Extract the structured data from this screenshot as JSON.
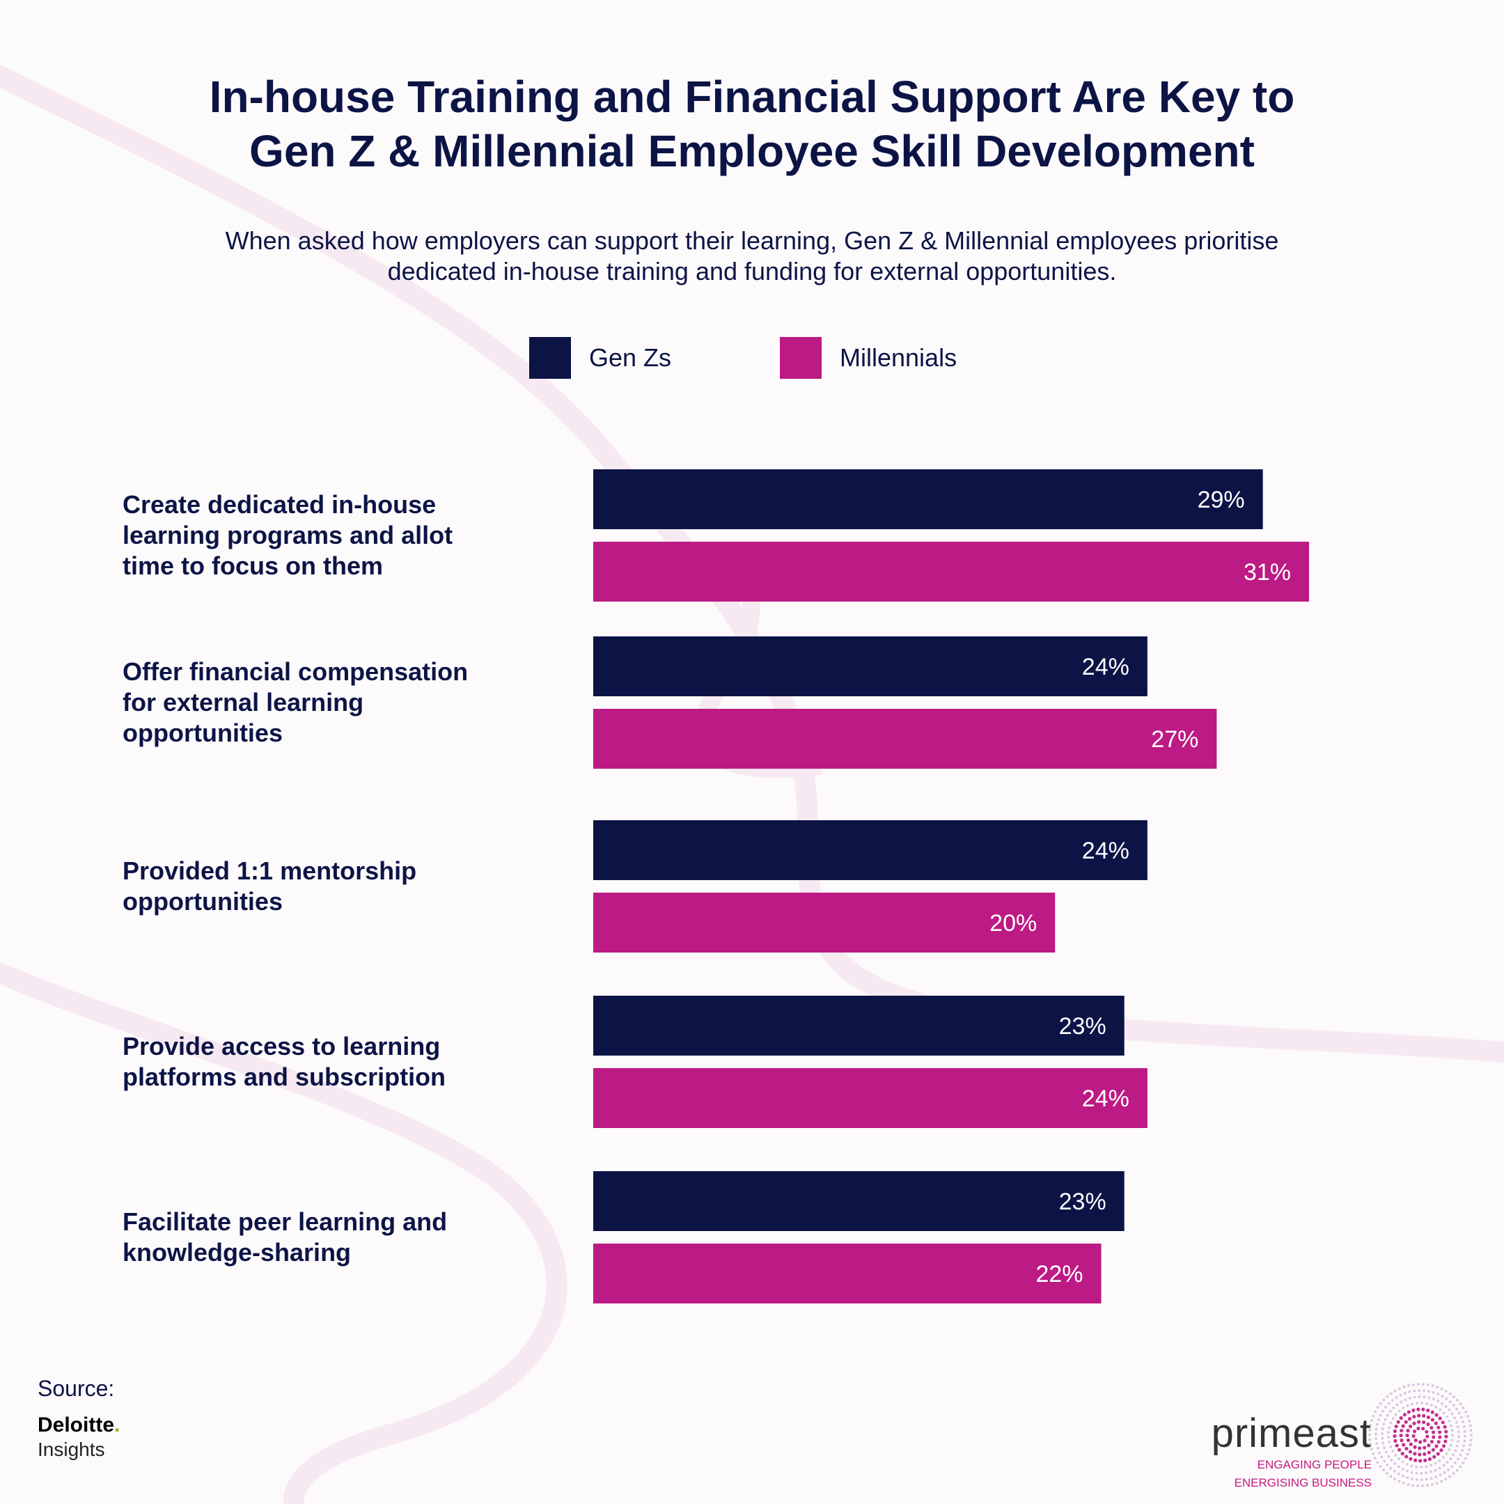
{
  "header": {
    "title_line1": "In-house Training and Financial Support Are Key to",
    "title_line2": "Gen Z & Millennial Employee Skill Development",
    "subtitle_line1": "When asked how employers can support their learning, Gen Z & Millennial employees prioritise",
    "subtitle_line2": "dedicated in-house training and funding for external opportunities."
  },
  "colors": {
    "genz": "#0c1446",
    "millennials": "#bc1a84",
    "bar_text": "#ffffff",
    "swirl": "#f7e9f1"
  },
  "chart_data": {
    "type": "bar",
    "orientation": "horizontal",
    "categories": [
      "Create dedicated in-house learning programs and allot time to focus on them",
      "Offer financial compensation for external learning opportunities",
      "Provided 1:1 mentorship opportunities",
      "Provide access to learning platforms and subscription",
      "Facilitate peer learning and knowledge-sharing"
    ],
    "category_lines": [
      [
        "Create dedicated in-house",
        "learning programs and allot",
        "time to focus on them"
      ],
      [
        "Offer financial compensation",
        "for external learning",
        "opportunities"
      ],
      [
        "Provided 1:1 mentorship",
        "opportunities"
      ],
      [
        "Provide access to learning",
        "platforms and subscription"
      ],
      [
        "Facilitate peer learning and",
        "knowledge-sharing"
      ]
    ],
    "series": [
      {
        "name": "Gen Zs",
        "values": [
          29,
          24,
          24,
          23,
          23
        ],
        "labels": [
          "29%",
          "24%",
          "24%",
          "23%",
          "23%"
        ]
      },
      {
        "name": "Millennials",
        "values": [
          31,
          27,
          20,
          24,
          22
        ],
        "labels": [
          "31%",
          "27%",
          "20%",
          "24%",
          "22%"
        ]
      }
    ],
    "unit": "%",
    "xlim": [
      0,
      31
    ],
    "legend_position": "top-center",
    "grid": false
  },
  "footer": {
    "source_label": "Source:",
    "source_name": "Deloitte",
    "source_dot": ".",
    "source_sub": "Insights",
    "brand_name": "primeast",
    "brand_tag1": "ENGAGING PEOPLE",
    "brand_tag2": "ENERGISING BUSINESS"
  }
}
